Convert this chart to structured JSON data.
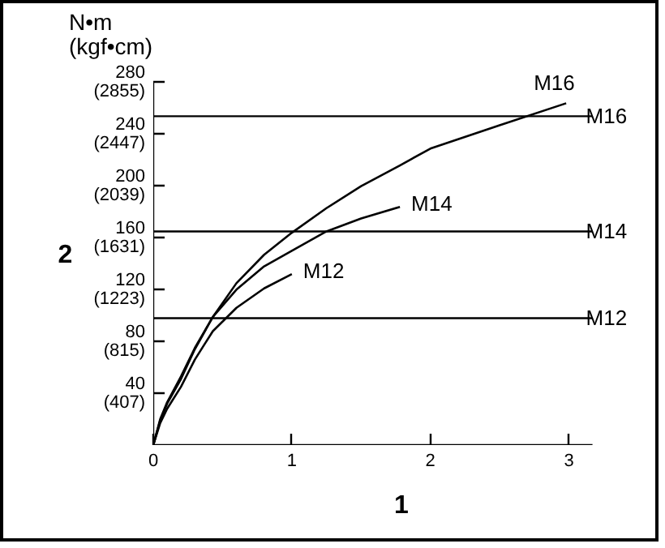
{
  "chart_data": {
    "type": "line",
    "xlabel": "1",
    "y2label": "2",
    "annotations": [
      "N•m\n(kgf•cm)"
    ],
    "x": [
      0,
      0.05,
      0.1,
      0.2,
      0.3,
      0.43,
      0.6,
      0.8,
      1.0,
      1.25,
      1.5,
      1.78,
      2.0,
      2.5,
      2.98
    ],
    "series": [
      {
        "name": "M16",
        "color": "#000000",
        "values": [
          0,
          20,
          33,
          53,
          75,
          99,
          125,
          147,
          164,
          183,
          200,
          216,
          229,
          247,
          264
        ]
      },
      {
        "name": "M14",
        "color": "#000000",
        "values": [
          0,
          19,
          32,
          51,
          74,
          99,
          120,
          138,
          150,
          165,
          175,
          184,
          null,
          null,
          null
        ]
      },
      {
        "name": "M12",
        "color": "#000000",
        "values": [
          0,
          17,
          28,
          45,
          66,
          88,
          106,
          121,
          132,
          null,
          null,
          null,
          null,
          null,
          null
        ]
      }
    ],
    "xlim": [
      0,
      3.17
    ],
    "ylim": [
      0,
      280
    ],
    "y2lim": [
      0,
      2855
    ],
    "xticks": [
      0,
      1,
      2,
      3
    ],
    "yticks": [
      40,
      80,
      120,
      160,
      200,
      240,
      280
    ],
    "y2ticks": [
      {
        "value": 407,
        "label": "(407)"
      },
      {
        "value": 815,
        "label": "(815)"
      },
      {
        "value": 1223,
        "label": "(1223)"
      },
      {
        "value": 1631,
        "label": "(1631)"
      },
      {
        "value": 2039,
        "label": "(2039)"
      },
      {
        "value": 2447,
        "label": "(2447)"
      },
      {
        "value": 2855,
        "label": "(2855)"
      }
    ],
    "ref_lines": [
      {
        "axis": "y",
        "value": 254,
        "label": "M16"
      },
      {
        "axis": "y",
        "value": 165,
        "label": "M14"
      },
      {
        "axis": "y",
        "value": 98,
        "label": "M12"
      }
    ],
    "grid": false,
    "marker": "none",
    "line_style": "solid"
  }
}
